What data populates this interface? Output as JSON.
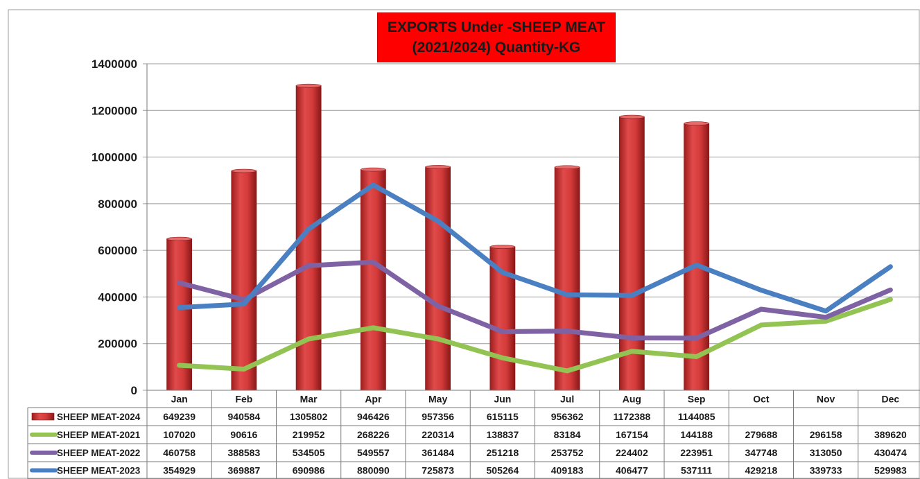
{
  "chart_data": {
    "type": "bar",
    "title_line1": "EXPORTS Under -SHEEP MEAT",
    "title_line2": "(2021/2024)  Quantity-KG",
    "categories": [
      "Jan",
      "Feb",
      "Mar",
      "Apr",
      "May",
      "Jun",
      "Jul",
      "Aug",
      "Sep",
      "Oct",
      "Nov",
      "Dec"
    ],
    "ylim": [
      0,
      1400000
    ],
    "yticks": [
      0,
      200000,
      400000,
      600000,
      800000,
      1000000,
      1200000,
      1400000
    ],
    "grid": true,
    "legend_placement": "data table (left column)",
    "series": [
      {
        "name": "SHEEP MEAT-2024",
        "kind": "bar",
        "color": "#d43a3a",
        "values": [
          649239,
          940584,
          1305802,
          946426,
          957356,
          615115,
          956362,
          1172388,
          1144085,
          null,
          null,
          null
        ]
      },
      {
        "name": "SHEEP MEAT-2021",
        "kind": "line",
        "color": "#92c353",
        "values": [
          107020,
          90616,
          219952,
          268226,
          220314,
          138837,
          83184,
          167154,
          144188,
          279688,
          296158,
          389620
        ]
      },
      {
        "name": "SHEEP MEAT-2022",
        "kind": "line",
        "color": "#7f62a3",
        "values": [
          460758,
          388583,
          534505,
          549557,
          361484,
          251218,
          253752,
          224402,
          223951,
          347748,
          313050,
          430474
        ]
      },
      {
        "name": "SHEEP MEAT-2023",
        "kind": "line",
        "color": "#4a7fc1",
        "values": [
          354929,
          369887,
          690986,
          880090,
          725873,
          505264,
          409183,
          406477,
          537111,
          429218,
          339733,
          529983
        ]
      }
    ]
  }
}
